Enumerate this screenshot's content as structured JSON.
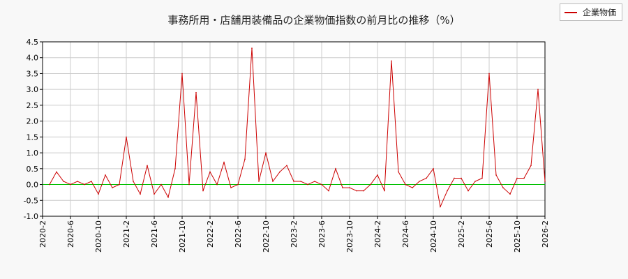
{
  "colors": {
    "series": "#cc0000",
    "baseline": "#00c000",
    "grid": "#cccccc",
    "plot_bg": "#ffffff"
  },
  "chart_data": {
    "type": "line",
    "title": "事務所用・店舗用装備品の企業物価指数の前月比の推移（%）",
    "xlabel": "",
    "ylabel": "",
    "ylim": [
      -1.0,
      4.5
    ],
    "yticks": [
      "-1.0",
      "-0.5",
      "0.0",
      "0.5",
      "1.0",
      "1.5",
      "2.0",
      "2.5",
      "3.0",
      "3.5",
      "4.0",
      "4.5"
    ],
    "xticks": [
      "2020-2",
      "2020-6",
      "2020-10",
      "2021-2",
      "2021-6",
      "2021-10",
      "2022-2",
      "2022-6",
      "2022-10",
      "2023-2",
      "2023-6",
      "2023-10",
      "2024-2",
      "2024-6",
      "2024-10",
      "2025-2",
      "2025-6",
      "2025-10",
      "2026-2"
    ],
    "grid": true,
    "legend": "top-right",
    "baseline": 0,
    "x": [
      "2020-3",
      "2020-4",
      "2020-5",
      "2020-6",
      "2020-7",
      "2020-8",
      "2020-9",
      "2020-10",
      "2020-11",
      "2020-12",
      "2021-1",
      "2021-2",
      "2021-3",
      "2021-4",
      "2021-5",
      "2021-6",
      "2021-7",
      "2021-8",
      "2021-9",
      "2021-10",
      "2021-11",
      "2021-12",
      "2022-1",
      "2022-2",
      "2022-3",
      "2022-4",
      "2022-5",
      "2022-6",
      "2022-7",
      "2022-8",
      "2022-9",
      "2022-10",
      "2022-11",
      "2022-12",
      "2023-1",
      "2023-2",
      "2023-3",
      "2023-4",
      "2023-5",
      "2023-6",
      "2023-7",
      "2023-8",
      "2023-9",
      "2023-10",
      "2023-11",
      "2023-12",
      "2024-1",
      "2024-2",
      "2024-3",
      "2024-4",
      "2024-5",
      "2024-6",
      "2024-7",
      "2024-8",
      "2024-9",
      "2024-10",
      "2024-11",
      "2024-12",
      "2025-1",
      "2025-2",
      "2025-3",
      "2025-4",
      "2025-5",
      "2025-6",
      "2025-7",
      "2025-8",
      "2025-9",
      "2025-10",
      "2025-11",
      "2025-12",
      "2026-1",
      "2026-2"
    ],
    "series": [
      {
        "name": "企業物価",
        "values": [
          0.0,
          0.4,
          0.1,
          0.0,
          0.1,
          0.0,
          0.1,
          -0.3,
          0.3,
          -0.1,
          0.0,
          1.5,
          0.1,
          -0.3,
          0.6,
          -0.3,
          0.0,
          -0.4,
          0.5,
          3.5,
          0.0,
          2.9,
          -0.2,
          0.4,
          0.0,
          0.7,
          -0.1,
          0.0,
          0.8,
          4.3,
          0.1,
          1.0,
          0.1,
          0.4,
          0.6,
          0.1,
          0.1,
          0.0,
          0.1,
          0.0,
          -0.2,
          0.5,
          -0.1,
          -0.1,
          -0.2,
          -0.2,
          0.0,
          0.3,
          -0.2,
          3.9,
          0.4,
          0.0,
          -0.1,
          0.1,
          0.2,
          0.5,
          -0.7,
          -0.2,
          0.2,
          0.2,
          -0.2,
          0.1,
          0.2,
          3.5,
          0.3,
          -0.1,
          -0.3,
          0.2,
          0.2,
          0.6,
          3.0,
          0.1
        ]
      }
    ]
  }
}
